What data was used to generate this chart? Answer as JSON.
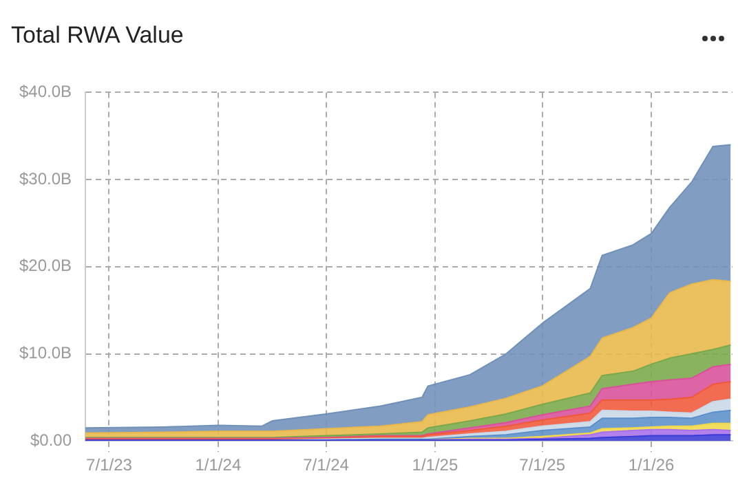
{
  "chart_data": {
    "type": "area",
    "title": "Total RWA Value",
    "stacked": true,
    "grid": true,
    "x": [
      "2023-05-22",
      "2023-10-01",
      "2024-01-01",
      "2024-03-15",
      "2024-04-01",
      "2024-07-01",
      "2024-10-01",
      "2024-12-10",
      "2024-12-20",
      "2025-03-01",
      "2025-05-01",
      "2025-07-01",
      "2025-09-20",
      "2025-10-10",
      "2025-12-01",
      "2026-01-01",
      "2026-02-01",
      "2026-03-10",
      "2026-04-15",
      "2026-05-15"
    ],
    "xlim": [
      "2023-05-22",
      "2026-05-18"
    ],
    "xticks": [
      {
        "value": "2023-07-01",
        "label": "7/1/23"
      },
      {
        "value": "2024-01-01",
        "label": "1/1/24"
      },
      {
        "value": "2024-07-01",
        "label": "7/1/24"
      },
      {
        "value": "2025-01-01",
        "label": "1/1/25"
      },
      {
        "value": "2025-07-01",
        "label": "7/1/25"
      },
      {
        "value": "2026-01-01",
        "label": "1/1/26"
      }
    ],
    "ylim": [
      0,
      40
    ],
    "yticks": [
      {
        "value": 0,
        "label": "$0.00"
      },
      {
        "value": 10,
        "label": "$10.0B"
      },
      {
        "value": 20,
        "label": "$20.0B"
      },
      {
        "value": 30,
        "label": "$30.0B"
      },
      {
        "value": 40,
        "label": "$40.0B"
      }
    ],
    "series": [
      {
        "color": "#3b3bd6",
        "values": [
          0.1,
          0.1,
          0.1,
          0.1,
          0.1,
          0.1,
          0.1,
          0.1,
          0.1,
          0.1,
          0.1,
          0.2,
          0.3,
          0.4,
          0.5,
          0.6,
          0.6,
          0.6,
          0.7,
          0.7
        ]
      },
      {
        "color": "#a970e8",
        "values": [
          0,
          0,
          0,
          0,
          0,
          0,
          0,
          0,
          0,
          0.1,
          0.1,
          0.1,
          0.4,
          0.6,
          0.7,
          0.7,
          0.7,
          0.6,
          0.6,
          0.5
        ]
      },
      {
        "color": "#f0d84a",
        "values": [
          0,
          0,
          0,
          0,
          0,
          0,
          0,
          0,
          0,
          0.1,
          0.1,
          0.2,
          0.2,
          0.4,
          0.3,
          0.3,
          0.4,
          0.5,
          0.7,
          0.8
        ]
      },
      {
        "color": "#5b8fc9",
        "values": [
          0,
          0,
          0,
          0,
          0,
          0,
          0.1,
          0.1,
          0.1,
          0.2,
          0.4,
          0.7,
          0.7,
          1.2,
          1.1,
          1.1,
          1.0,
          0.9,
          1.3,
          1.5
        ]
      },
      {
        "color": "#c8d8e8",
        "values": [
          0,
          0,
          0,
          0,
          0,
          0.1,
          0.1,
          0.1,
          0.2,
          0.3,
          0.4,
          0.5,
          0.6,
          0.9,
          0.8,
          0.7,
          0.6,
          0.6,
          1.2,
          1.3
        ]
      },
      {
        "color": "#f0583a",
        "values": [
          0.1,
          0.1,
          0.1,
          0.1,
          0.1,
          0.1,
          0.2,
          0.2,
          0.3,
          0.4,
          0.6,
          0.7,
          1.0,
          1.2,
          1.3,
          1.3,
          1.5,
          1.8,
          2.0,
          2.0
        ]
      },
      {
        "color": "#d8509a",
        "values": [
          0.1,
          0.1,
          0.1,
          0.1,
          0.1,
          0.1,
          0.1,
          0.1,
          0.1,
          0.3,
          0.4,
          0.6,
          0.8,
          1.3,
          1.8,
          2.1,
          2.2,
          2.2,
          2.0,
          2.0
        ]
      },
      {
        "color": "#7aa84a",
        "values": [
          0.1,
          0.1,
          0.1,
          0.1,
          0.1,
          0.2,
          0.2,
          0.4,
          0.7,
          0.8,
          1.0,
          1.2,
          1.5,
          1.5,
          1.5,
          2.0,
          2.5,
          2.8,
          2.0,
          2.2
        ]
      },
      {
        "color": "#e8b84a",
        "values": [
          0.5,
          0.6,
          0.7,
          0.7,
          0.7,
          0.8,
          0.9,
          1.2,
          1.5,
          1.6,
          1.8,
          2.1,
          4.2,
          4.3,
          5.0,
          5.3,
          7.5,
          8.0,
          8.0,
          7.3
        ]
      },
      {
        "color": "#6f90b8",
        "values": [
          0.6,
          0.6,
          0.7,
          0.6,
          1.2,
          1.7,
          2.3,
          2.8,
          3.3,
          3.7,
          5.1,
          7.2,
          7.8,
          9.5,
          9.5,
          9.7,
          9.8,
          11.7,
          15.3,
          15.7
        ]
      }
    ]
  }
}
